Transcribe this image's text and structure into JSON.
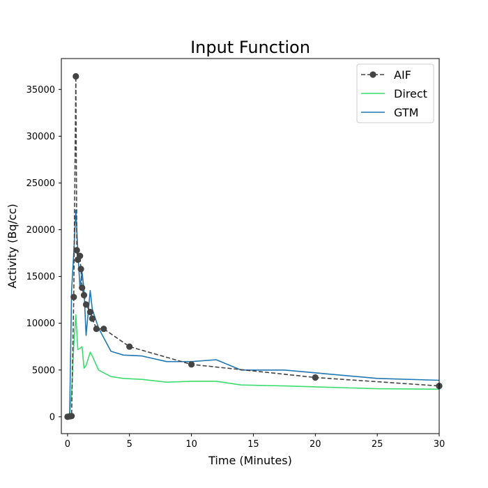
{
  "chart_data": {
    "type": "line",
    "title": "Input Function",
    "xlabel": "Time (Minutes)",
    "ylabel": "Activity (Bq/cc)",
    "xlim": [
      -0.5,
      30
    ],
    "ylim": [
      -1800,
      38300
    ],
    "xticks": [
      0,
      5,
      10,
      15,
      20,
      25,
      30
    ],
    "yticks": [
      0,
      5000,
      10000,
      15000,
      20000,
      25000,
      30000,
      35000
    ],
    "xtick_labels": [
      "0",
      "5",
      "10",
      "15",
      "20",
      "25",
      "30"
    ],
    "ytick_labels": [
      "0",
      "5000",
      "10000",
      "15000",
      "20000",
      "25000",
      "30000",
      "35000"
    ],
    "grid": false,
    "legend_position": "top-right",
    "series": [
      {
        "name": "AIF",
        "style": "dashed-with-markers",
        "color": "#444444",
        "x": [
          0,
          0.17,
          0.33,
          0.5,
          0.67,
          0.75,
          0.83,
          1.0,
          1.08,
          1.17,
          1.33,
          1.5,
          1.83,
          2.0,
          2.33,
          2.92,
          5,
          10,
          20,
          30
        ],
        "y": [
          0,
          50,
          80,
          12800,
          36400,
          17800,
          16800,
          17200,
          15800,
          13800,
          13000,
          12000,
          11200,
          10500,
          9400,
          9400,
          7500,
          5600,
          4200,
          3300
        ]
      },
      {
        "name": "Direct",
        "style": "solid",
        "color": "#3cdc6e",
        "x": [
          0,
          0.17,
          0.33,
          0.5,
          0.67,
          0.83,
          1.0,
          1.17,
          1.33,
          1.5,
          1.83,
          2.0,
          2.5,
          3.5,
          4.5,
          6,
          8,
          10,
          12,
          14,
          17.5,
          20,
          25,
          30
        ],
        "y": [
          0,
          100,
          2500,
          7600,
          10900,
          7200,
          7300,
          7500,
          5200,
          5500,
          6900,
          6500,
          5000,
          4300,
          4100,
          4000,
          3700,
          3800,
          3800,
          3400,
          3300,
          3200,
          3000,
          2950
        ]
      },
      {
        "name": "GTM",
        "style": "solid",
        "color": "#1f77b4",
        "x": [
          0,
          0.17,
          0.33,
          0.5,
          0.67,
          0.83,
          1.0,
          1.17,
          1.33,
          1.5,
          1.83,
          2.0,
          2.5,
          3.5,
          4.5,
          6,
          8,
          10,
          12,
          14,
          17.5,
          20,
          25,
          30
        ],
        "y": [
          0,
          150,
          13500,
          17500,
          22100,
          17800,
          13800,
          15500,
          13600,
          8700,
          13500,
          11500,
          9500,
          7000,
          6600,
          6500,
          5900,
          5900,
          6100,
          5000,
          5000,
          4700,
          4100,
          3900
        ]
      }
    ]
  }
}
